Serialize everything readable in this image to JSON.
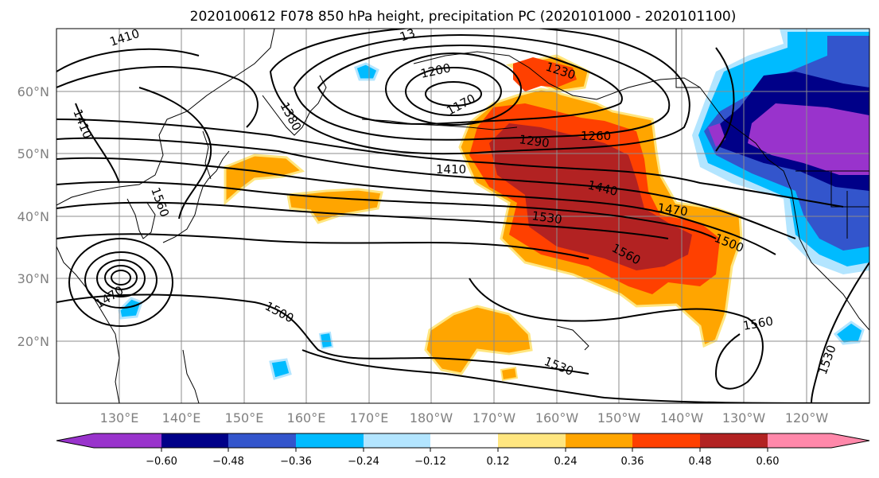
{
  "title": "2020100612 F078 850 hPa height, precipitation PC (2020101000 - 2020101100)",
  "map": {
    "lat_labels": [
      "60°N",
      "50°N",
      "40°N",
      "30°N",
      "20°N"
    ],
    "lon_labels": [
      "130°E",
      "140°E",
      "150°E",
      "160°E",
      "170°E",
      "180°W",
      "170°W",
      "160°W",
      "150°W",
      "140°W",
      "130°W",
      "120°W"
    ],
    "contour_labels": [
      "1410",
      "1380",
      "1410",
      "1200",
      "1170",
      "1230",
      "1260",
      "1290",
      "1410",
      "1440",
      "1470",
      "1530",
      "1500",
      "1560",
      "1560",
      "1470",
      "1500",
      "1530",
      "1560",
      "1530",
      "13"
    ],
    "colors": {
      "-0.60_below": "#9933cc",
      "-0.60_-0.48": "#000088",
      "-0.48_-0.36": "#3355cc",
      "-0.36_-0.24": "#00bbff",
      "-0.24_-0.12": "#b3e5ff",
      "-0.12_0.12": "#ffffff",
      "0.12_0.24": "#ffe680",
      "0.24_0.36": "#ffa500",
      "0.36_0.48": "#ff4000",
      "0.48_0.60": "#b22222",
      "0.60_above": "#ff88aa"
    }
  },
  "colorbar": {
    "ticks": [
      "−0.60",
      "−0.48",
      "−0.36",
      "−0.24",
      "−0.12",
      "0.12",
      "0.24",
      "0.36",
      "0.48",
      "0.60"
    ]
  }
}
